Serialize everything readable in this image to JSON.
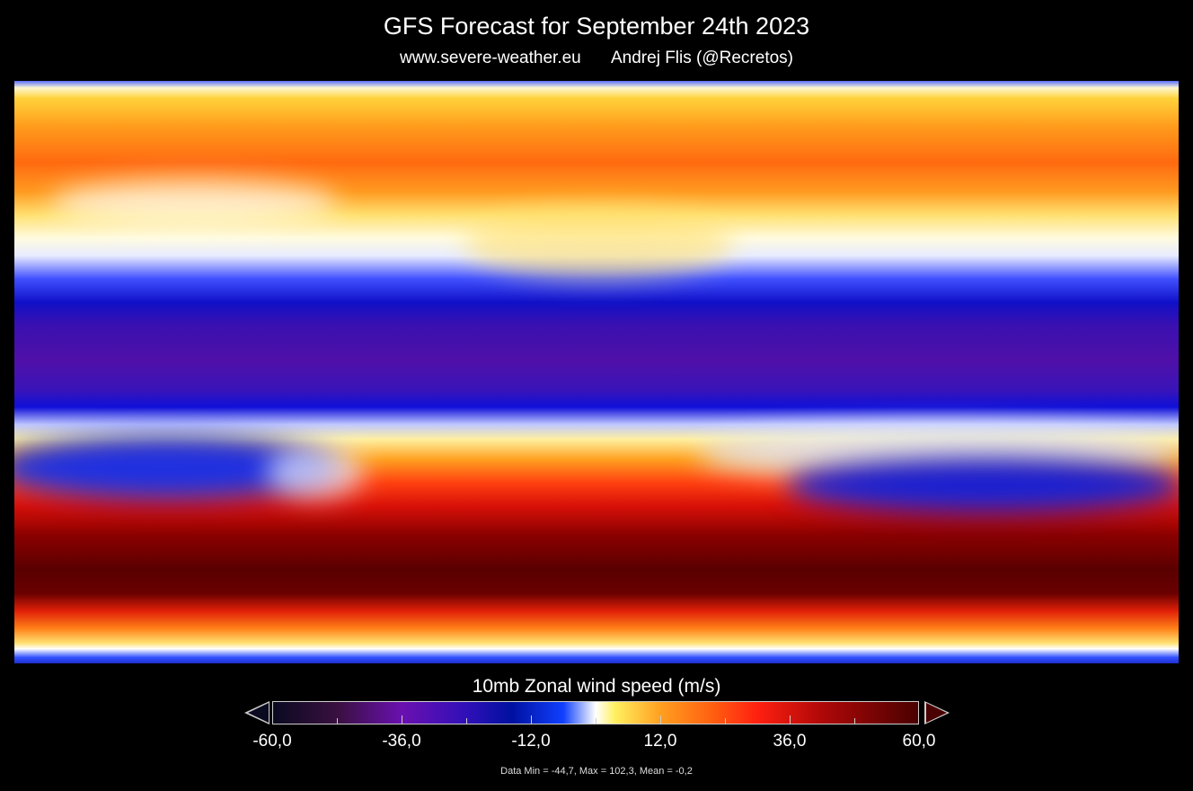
{
  "header": {
    "title": "GFS Forecast for September 24th 2023",
    "website": "www.severe-weather.eu",
    "author": "Andrej Flis (@Recretos)"
  },
  "map": {
    "variable": "10mb Zonal wind speed",
    "projection": "equirectangular global"
  },
  "colorbar": {
    "title": "10mb Zonal wind speed (m/s)",
    "min": -60,
    "max": 60,
    "tick_labels": [
      "-60,0",
      "-36,0",
      "-12,0",
      "12,0",
      "36,0",
      "60,0"
    ],
    "colors": [
      "#0a0a20",
      "#6a10b0",
      "#0010a0",
      "#1040ff",
      "#ffffff",
      "#fff060",
      "#ffa020",
      "#ff2010",
      "#4a0000"
    ]
  },
  "footer": {
    "stats": "Data Min = -44,7, Max = 102,3, Mean = -0,2"
  }
}
